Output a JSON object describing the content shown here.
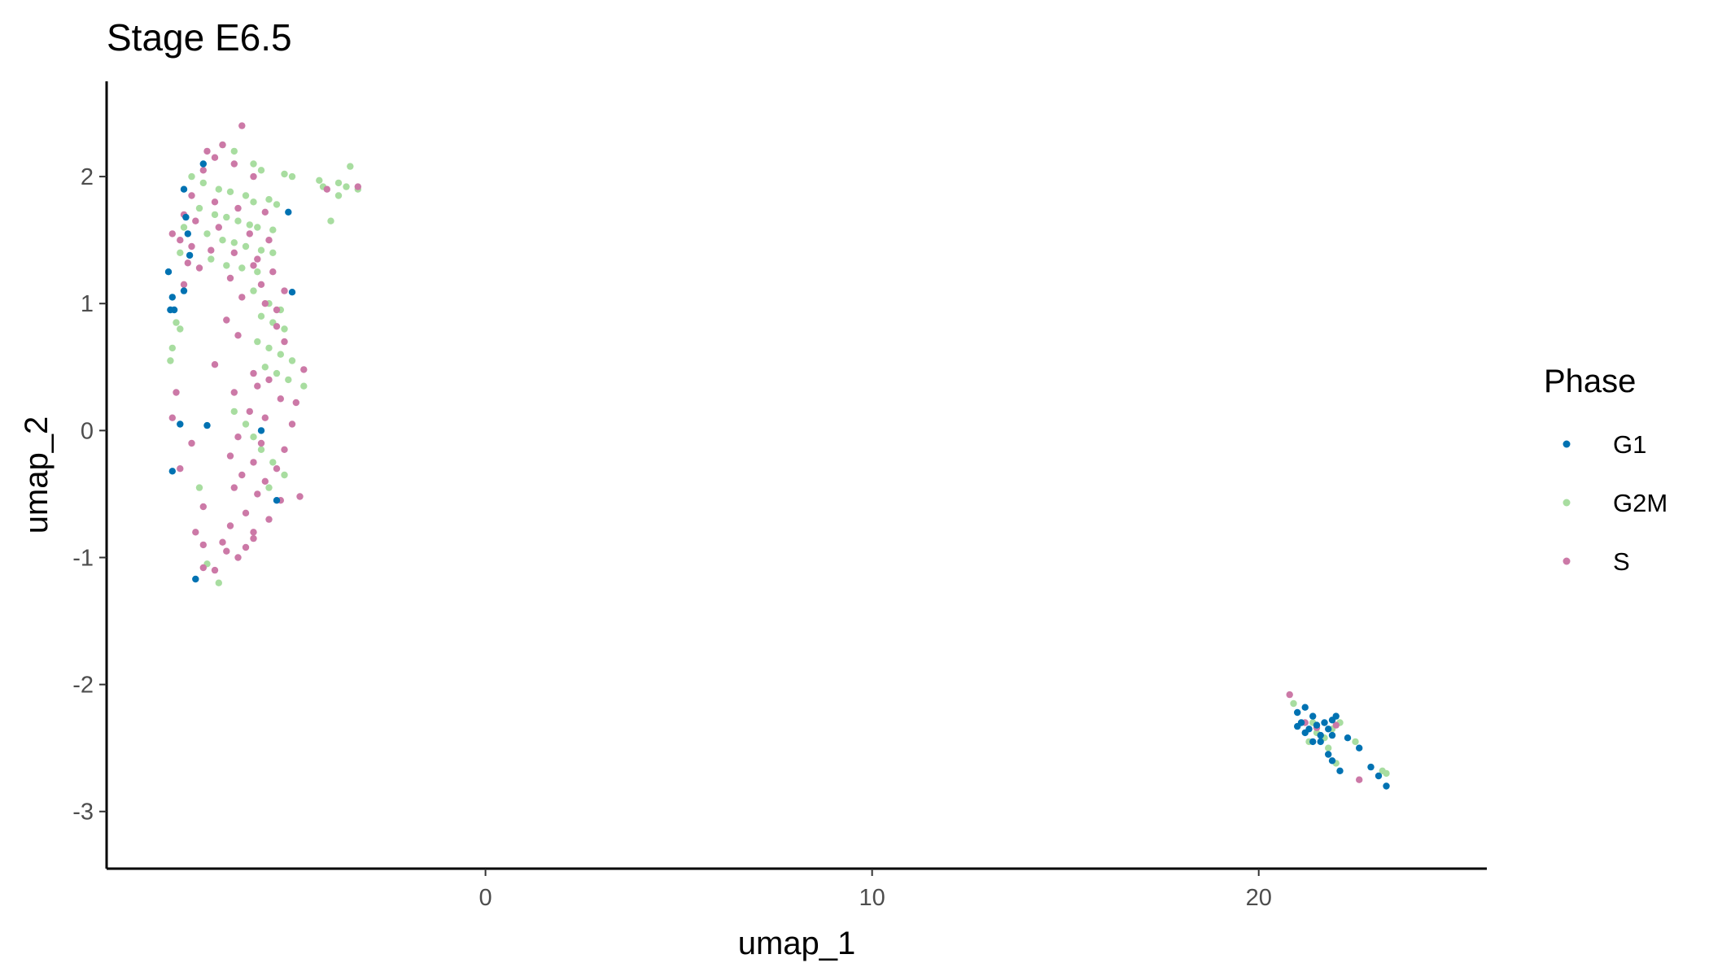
{
  "chart_data": {
    "type": "scatter",
    "title": "Stage E6.5",
    "xlabel": "umap_1",
    "ylabel": "umap_2",
    "xlim": [
      -9.8,
      25.9
    ],
    "ylim": [
      -3.45,
      2.75
    ],
    "xticks": [
      0,
      10,
      20
    ],
    "xtick_labels": [
      "0",
      "10",
      "20"
    ],
    "yticks": [
      -3,
      -2,
      -1,
      0,
      1,
      2
    ],
    "ytick_labels": [
      "-3",
      "-2",
      "-1",
      "0",
      "1",
      "2"
    ],
    "grid": false,
    "legend": {
      "title": "Phase",
      "position": "right"
    },
    "series": [
      {
        "name": "G1",
        "color": "#0072b2",
        "points": [
          [
            -7.8,
            1.9
          ],
          [
            -7.3,
            2.1
          ],
          [
            -8.2,
            1.25
          ],
          [
            -8.1,
            1.05
          ],
          [
            -8.15,
            0.95
          ],
          [
            -8.05,
            0.95
          ],
          [
            -7.8,
            1.1
          ],
          [
            -7.7,
            1.55
          ],
          [
            -7.65,
            1.38
          ],
          [
            -7.75,
            1.68
          ],
          [
            -5.1,
            1.72
          ],
          [
            -5.0,
            1.09
          ],
          [
            -7.9,
            0.05
          ],
          [
            -7.2,
            0.04
          ],
          [
            -8.1,
            -0.32
          ],
          [
            -5.8,
            0.0
          ],
          [
            -5.4,
            -0.55
          ],
          [
            -7.5,
            -1.17
          ],
          [
            21.0,
            -2.22
          ],
          [
            21.2,
            -2.18
          ],
          [
            21.4,
            -2.25
          ],
          [
            21.1,
            -2.3
          ],
          [
            21.3,
            -2.35
          ],
          [
            21.5,
            -2.32
          ],
          [
            21.6,
            -2.4
          ],
          [
            21.4,
            -2.45
          ],
          [
            21.7,
            -2.3
          ],
          [
            21.8,
            -2.35
          ],
          [
            21.9,
            -2.28
          ],
          [
            22.0,
            -2.25
          ],
          [
            21.9,
            -2.4
          ],
          [
            22.3,
            -2.42
          ],
          [
            21.2,
            -2.38
          ],
          [
            21.6,
            -2.45
          ],
          [
            21.8,
            -2.55
          ],
          [
            21.9,
            -2.6
          ],
          [
            22.1,
            -2.68
          ],
          [
            22.6,
            -2.5
          ],
          [
            22.9,
            -2.65
          ],
          [
            23.1,
            -2.72
          ],
          [
            23.3,
            -2.8
          ],
          [
            21.0,
            -2.33
          ]
        ]
      },
      {
        "name": "G2M",
        "color": "#a8dda0",
        "points": [
          [
            -6.8,
            2.25
          ],
          [
            -6.5,
            2.2
          ],
          [
            -6.0,
            2.1
          ],
          [
            -5.8,
            2.05
          ],
          [
            -5.2,
            2.02
          ],
          [
            -5.0,
            2.0
          ],
          [
            -7.6,
            2.0
          ],
          [
            -7.3,
            1.95
          ],
          [
            -6.9,
            1.9
          ],
          [
            -6.6,
            1.88
          ],
          [
            -6.2,
            1.85
          ],
          [
            -6.0,
            1.8
          ],
          [
            -5.6,
            1.82
          ],
          [
            -5.4,
            1.78
          ],
          [
            -7.4,
            1.75
          ],
          [
            -7.0,
            1.7
          ],
          [
            -6.7,
            1.68
          ],
          [
            -6.4,
            1.65
          ],
          [
            -6.1,
            1.62
          ],
          [
            -5.9,
            1.6
          ],
          [
            -5.5,
            1.58
          ],
          [
            -7.2,
            1.55
          ],
          [
            -6.8,
            1.5
          ],
          [
            -6.5,
            1.48
          ],
          [
            -6.2,
            1.45
          ],
          [
            -5.8,
            1.42
          ],
          [
            -5.5,
            1.4
          ],
          [
            -7.1,
            1.35
          ],
          [
            -6.7,
            1.3
          ],
          [
            -6.3,
            1.28
          ],
          [
            -5.9,
            1.25
          ],
          [
            -7.8,
            1.6
          ],
          [
            -7.9,
            1.4
          ],
          [
            -3.8,
            1.95
          ],
          [
            -3.6,
            1.92
          ],
          [
            -3.3,
            1.9
          ],
          [
            -3.5,
            2.08
          ],
          [
            -3.8,
            1.85
          ],
          [
            -4.3,
            1.97
          ],
          [
            -4.2,
            1.92
          ],
          [
            -4.0,
            1.65
          ],
          [
            -6.0,
            1.1
          ],
          [
            -5.6,
            1.0
          ],
          [
            -5.3,
            0.95
          ],
          [
            -5.8,
            0.9
          ],
          [
            -5.5,
            0.85
          ],
          [
            -5.2,
            0.8
          ],
          [
            -5.9,
            0.7
          ],
          [
            -5.6,
            0.65
          ],
          [
            -5.3,
            0.6
          ],
          [
            -5.0,
            0.55
          ],
          [
            -5.7,
            0.5
          ],
          [
            -5.4,
            0.45
          ],
          [
            -5.1,
            0.4
          ],
          [
            -4.7,
            0.35
          ],
          [
            -8.0,
            0.85
          ],
          [
            -7.9,
            0.8
          ],
          [
            -8.1,
            0.65
          ],
          [
            -8.15,
            0.55
          ],
          [
            -6.5,
            0.15
          ],
          [
            -6.2,
            0.05
          ],
          [
            -6.0,
            -0.05
          ],
          [
            -5.8,
            -0.15
          ],
          [
            -5.5,
            -0.25
          ],
          [
            -5.2,
            -0.35
          ],
          [
            -5.6,
            -0.45
          ],
          [
            -7.4,
            -0.45
          ],
          [
            -7.2,
            -1.05
          ],
          [
            -6.9,
            -1.2
          ],
          [
            21.3,
            -2.45
          ],
          [
            21.5,
            -2.38
          ],
          [
            21.7,
            -2.42
          ],
          [
            21.9,
            -2.35
          ],
          [
            22.1,
            -2.3
          ],
          [
            21.4,
            -2.3
          ],
          [
            20.9,
            -2.15
          ],
          [
            22.5,
            -2.45
          ],
          [
            23.3,
            -2.7
          ],
          [
            23.2,
            -2.68
          ],
          [
            22.0,
            -2.62
          ],
          [
            21.8,
            -2.5
          ]
        ]
      },
      {
        "name": "S",
        "color": "#cc79a7",
        "points": [
          [
            -6.3,
            2.4
          ],
          [
            -7.2,
            2.2
          ],
          [
            -6.8,
            2.25
          ],
          [
            -7.0,
            2.15
          ],
          [
            -6.5,
            2.1
          ],
          [
            -7.3,
            2.05
          ],
          [
            -6.0,
            2.0
          ],
          [
            -7.6,
            1.85
          ],
          [
            -7.0,
            1.8
          ],
          [
            -6.4,
            1.75
          ],
          [
            -5.7,
            1.72
          ],
          [
            -7.8,
            1.7
          ],
          [
            -7.5,
            1.65
          ],
          [
            -6.9,
            1.6
          ],
          [
            -6.1,
            1.55
          ],
          [
            -5.6,
            1.5
          ],
          [
            -7.9,
            1.5
          ],
          [
            -7.6,
            1.45
          ],
          [
            -7.1,
            1.42
          ],
          [
            -6.5,
            1.4
          ],
          [
            -5.9,
            1.35
          ],
          [
            -7.7,
            1.32
          ],
          [
            -7.4,
            1.28
          ],
          [
            -6.0,
            1.3
          ],
          [
            -5.5,
            1.25
          ],
          [
            -7.8,
            1.15
          ],
          [
            -6.6,
            1.2
          ],
          [
            -5.8,
            1.15
          ],
          [
            -5.2,
            1.1
          ],
          [
            -6.3,
            1.05
          ],
          [
            -5.7,
            1.0
          ],
          [
            -5.4,
            0.95
          ],
          [
            -8.1,
            1.55
          ],
          [
            -3.3,
            1.92
          ],
          [
            -4.1,
            1.9
          ],
          [
            -6.7,
            0.87
          ],
          [
            -5.4,
            0.82
          ],
          [
            -6.4,
            0.75
          ],
          [
            -5.2,
            0.7
          ],
          [
            -7.0,
            0.52
          ],
          [
            -6.0,
            0.45
          ],
          [
            -5.6,
            0.4
          ],
          [
            -4.7,
            0.48
          ],
          [
            -5.9,
            0.35
          ],
          [
            -6.5,
            0.3
          ],
          [
            -5.3,
            0.25
          ],
          [
            -4.9,
            0.22
          ],
          [
            -6.1,
            0.15
          ],
          [
            -5.7,
            0.1
          ],
          [
            -5.0,
            0.05
          ],
          [
            -6.4,
            -0.05
          ],
          [
            -5.8,
            -0.1
          ],
          [
            -5.2,
            -0.15
          ],
          [
            -7.6,
            -0.1
          ],
          [
            -8.0,
            0.3
          ],
          [
            -8.1,
            0.1
          ],
          [
            -6.6,
            -0.2
          ],
          [
            -6.0,
            -0.25
          ],
          [
            -5.4,
            -0.3
          ],
          [
            -7.9,
            -0.3
          ],
          [
            -6.3,
            -0.35
          ],
          [
            -5.7,
            -0.4
          ],
          [
            -6.5,
            -0.45
          ],
          [
            -5.9,
            -0.5
          ],
          [
            -5.3,
            -0.55
          ],
          [
            -7.3,
            -0.6
          ],
          [
            -6.2,
            -0.65
          ],
          [
            -5.6,
            -0.7
          ],
          [
            -6.6,
            -0.75
          ],
          [
            -6.0,
            -0.8
          ],
          [
            -7.5,
            -0.8
          ],
          [
            -7.3,
            -0.9
          ],
          [
            -6.8,
            -0.88
          ],
          [
            -6.2,
            -0.92
          ],
          [
            -6.0,
            -0.85
          ],
          [
            -6.7,
            -0.95
          ],
          [
            -6.4,
            -1.0
          ],
          [
            -7.0,
            -1.1
          ],
          [
            -7.3,
            -1.08
          ],
          [
            -4.8,
            -0.52
          ],
          [
            20.8,
            -2.08
          ],
          [
            21.5,
            -2.34
          ],
          [
            22.0,
            -2.32
          ],
          [
            22.6,
            -2.75
          ],
          [
            21.2,
            -2.3
          ]
        ]
      }
    ]
  }
}
